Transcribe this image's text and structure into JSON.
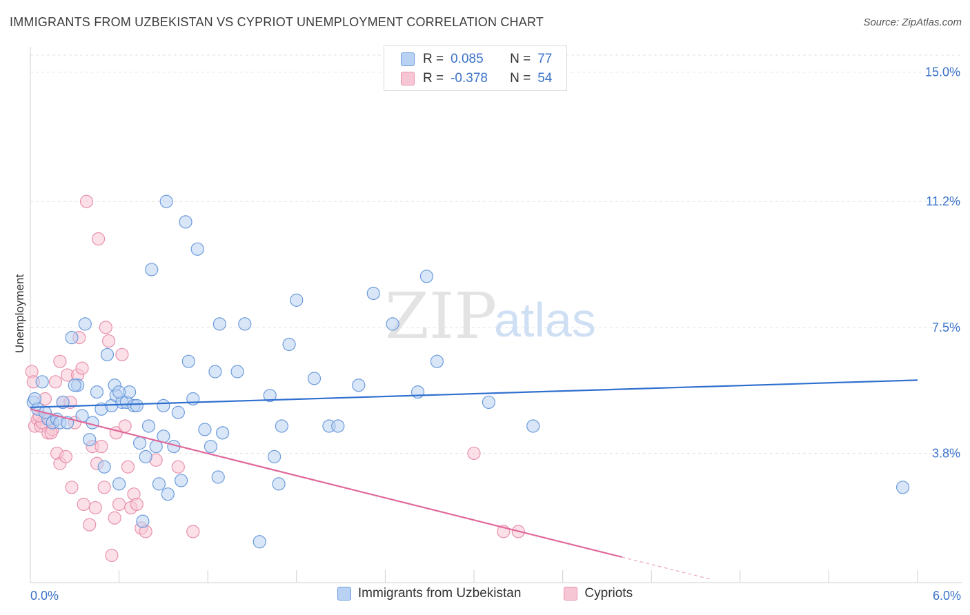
{
  "title": "IMMIGRANTS FROM UZBEKISTAN VS CYPRIOT UNEMPLOYMENT CORRELATION CHART",
  "source": "Source: ZipAtlas.com",
  "watermark": {
    "zip": "ZIP",
    "atlas": "atlas"
  },
  "colors": {
    "blue_fill": "#b9d2f3",
    "blue_stroke": "#6b9bdc",
    "blue_line": "#2f6fcf",
    "pink_fill": "#f7c6d4",
    "pink_stroke": "#e890ad",
    "pink_line": "#e0689a"
  },
  "legend": {
    "rows": [
      {
        "r_label": "R =",
        "r_value": "0.085",
        "n_label": "N =",
        "n_value": "77",
        "color": "blue"
      },
      {
        "r_label": "R =",
        "r_value": "-0.378",
        "n_label": "N =",
        "n_value": "54",
        "color": "pink"
      }
    ]
  },
  "bottom_legend": [
    "Immigrants from Uzbekistan",
    "Cypriots"
  ],
  "chart_data": {
    "type": "scatter",
    "title": "IMMIGRANTS FROM UZBEKISTAN VS CYPRIOT UNEMPLOYMENT CORRELATION CHART",
    "xlabel": "",
    "ylabel": "Unemployment",
    "xlim": [
      0,
      6.0
    ],
    "ylim": [
      0,
      15.5
    ],
    "x_tick_labels": [
      "0.0%",
      "6.0%"
    ],
    "y_ticks": [
      3.8,
      7.5,
      11.2,
      15.0
    ],
    "y_tick_labels": [
      "3.8%",
      "7.5%",
      "11.2%",
      "15.0%"
    ],
    "grid": true,
    "legend_placement": "top-center",
    "series": [
      {
        "name": "Immigrants from Uzbekistan",
        "color": "blue",
        "trend": [
          [
            0.0,
            5.15
          ],
          [
            6.0,
            5.95
          ]
        ],
        "points": [
          [
            0.02,
            5.3
          ],
          [
            0.03,
            5.4
          ],
          [
            0.05,
            5.1
          ],
          [
            0.08,
            5.9
          ],
          [
            0.12,
            4.8
          ],
          [
            0.15,
            4.7
          ],
          [
            0.18,
            4.8
          ],
          [
            0.2,
            4.7
          ],
          [
            0.22,
            5.3
          ],
          [
            0.25,
            4.7
          ],
          [
            0.28,
            7.2
          ],
          [
            0.32,
            5.8
          ],
          [
            0.35,
            4.9
          ],
          [
            0.37,
            7.6
          ],
          [
            0.4,
            4.2
          ],
          [
            0.42,
            4.7
          ],
          [
            0.45,
            5.6
          ],
          [
            0.48,
            5.1
          ],
          [
            0.5,
            3.4
          ],
          [
            0.52,
            6.7
          ],
          [
            0.55,
            5.2
          ],
          [
            0.57,
            5.8
          ],
          [
            0.58,
            5.5
          ],
          [
            0.6,
            2.9
          ],
          [
            0.62,
            5.3
          ],
          [
            0.65,
            5.3
          ],
          [
            0.67,
            5.6
          ],
          [
            0.7,
            5.2
          ],
          [
            0.72,
            5.2
          ],
          [
            0.74,
            4.1
          ],
          [
            0.76,
            1.8
          ],
          [
            0.78,
            3.7
          ],
          [
            0.8,
            4.6
          ],
          [
            0.82,
            9.2
          ],
          [
            0.85,
            4.0
          ],
          [
            0.87,
            2.9
          ],
          [
            0.9,
            4.3
          ],
          [
            0.92,
            11.2
          ],
          [
            0.93,
            2.6
          ],
          [
            0.97,
            4.0
          ],
          [
            1.0,
            5.0
          ],
          [
            1.02,
            3.0
          ],
          [
            1.05,
            10.6
          ],
          [
            1.07,
            6.5
          ],
          [
            1.1,
            5.4
          ],
          [
            1.13,
            9.8
          ],
          [
            1.18,
            4.5
          ],
          [
            1.22,
            4.0
          ],
          [
            1.25,
            6.2
          ],
          [
            1.27,
            3.1
          ],
          [
            1.28,
            7.6
          ],
          [
            1.4,
            6.2
          ],
          [
            1.45,
            7.6
          ],
          [
            1.55,
            1.2
          ],
          [
            1.62,
            5.5
          ],
          [
            1.65,
            3.7
          ],
          [
            1.68,
            2.9
          ],
          [
            1.7,
            4.6
          ],
          [
            1.75,
            7.0
          ],
          [
            1.8,
            8.3
          ],
          [
            1.92,
            6.0
          ],
          [
            2.02,
            4.6
          ],
          [
            2.08,
            4.6
          ],
          [
            2.22,
            5.8
          ],
          [
            2.32,
            8.5
          ],
          [
            2.45,
            7.6
          ],
          [
            2.62,
            5.6
          ],
          [
            2.68,
            9.0
          ],
          [
            2.75,
            6.5
          ],
          [
            3.1,
            5.3
          ],
          [
            3.4,
            4.6
          ],
          [
            5.9,
            2.8
          ],
          [
            0.1,
            5.0
          ],
          [
            0.3,
            5.8
          ],
          [
            0.6,
            5.6
          ],
          [
            0.9,
            5.2
          ],
          [
            1.3,
            4.4
          ]
        ]
      },
      {
        "name": "Cypriots",
        "color": "pink",
        "trend": [
          [
            0.0,
            5.1
          ],
          [
            4.0,
            0.75
          ]
        ],
        "trend_dashed_to": [
          4.6,
          0.1
        ],
        "points": [
          [
            0.01,
            6.2
          ],
          [
            0.02,
            5.9
          ],
          [
            0.03,
            4.6
          ],
          [
            0.05,
            4.8
          ],
          [
            0.07,
            4.6
          ],
          [
            0.08,
            4.7
          ],
          [
            0.1,
            5.4
          ],
          [
            0.12,
            4.4
          ],
          [
            0.13,
            4.8
          ],
          [
            0.15,
            4.5
          ],
          [
            0.17,
            5.9
          ],
          [
            0.18,
            3.8
          ],
          [
            0.2,
            3.5
          ],
          [
            0.2,
            6.5
          ],
          [
            0.22,
            5.3
          ],
          [
            0.24,
            3.7
          ],
          [
            0.25,
            6.1
          ],
          [
            0.27,
            5.3
          ],
          [
            0.28,
            2.8
          ],
          [
            0.3,
            4.7
          ],
          [
            0.32,
            6.1
          ],
          [
            0.33,
            7.2
          ],
          [
            0.35,
            6.3
          ],
          [
            0.36,
            2.3
          ],
          [
            0.38,
            11.2
          ],
          [
            0.4,
            1.7
          ],
          [
            0.42,
            4.0
          ],
          [
            0.44,
            2.2
          ],
          [
            0.45,
            3.5
          ],
          [
            0.46,
            10.1
          ],
          [
            0.48,
            4.0
          ],
          [
            0.5,
            2.8
          ],
          [
            0.51,
            7.5
          ],
          [
            0.53,
            7.1
          ],
          [
            0.55,
            0.8
          ],
          [
            0.57,
            1.9
          ],
          [
            0.58,
            4.4
          ],
          [
            0.6,
            2.3
          ],
          [
            0.62,
            6.7
          ],
          [
            0.64,
            4.6
          ],
          [
            0.66,
            3.4
          ],
          [
            0.68,
            2.2
          ],
          [
            0.7,
            2.6
          ],
          [
            0.72,
            2.3
          ],
          [
            0.75,
            1.6
          ],
          [
            0.78,
            1.5
          ],
          [
            0.85,
            3.6
          ],
          [
            1.0,
            3.4
          ],
          [
            1.1,
            1.5
          ],
          [
            3.0,
            3.8
          ],
          [
            3.2,
            1.5
          ],
          [
            3.3,
            1.5
          ],
          [
            0.06,
            4.9
          ],
          [
            0.14,
            4.4
          ]
        ]
      }
    ]
  }
}
